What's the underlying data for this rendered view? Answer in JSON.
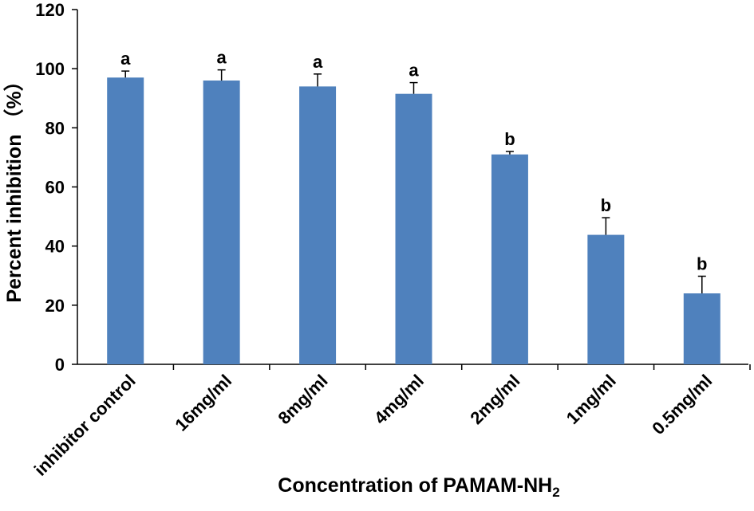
{
  "chart_data": {
    "type": "bar",
    "title": "",
    "xlabel_main": "Concentration of PAMAM-NH",
    "xlabel_sub": "2",
    "ylabel": "Percent inhibition （%）",
    "ylim": [
      0,
      120
    ],
    "yticks": [
      "0",
      "20",
      "40",
      "60",
      "80",
      "100",
      "120"
    ],
    "grid": false,
    "legend": "none",
    "bar_color": "#4f81bd",
    "categories": [
      "inhibitor control",
      "16mg/ml",
      "8mg/ml",
      "4mg/ml",
      "2mg/ml",
      "1mg/ml",
      "0.5mg/ml"
    ],
    "values": [
      97.0,
      96.0,
      94.0,
      91.5,
      71.0,
      43.8,
      24.0
    ],
    "errors": [
      2.2,
      3.6,
      4.2,
      3.8,
      1.0,
      5.8,
      5.8
    ],
    "significance": [
      "a",
      "a",
      "a",
      "a",
      "b",
      "b",
      "b"
    ]
  }
}
